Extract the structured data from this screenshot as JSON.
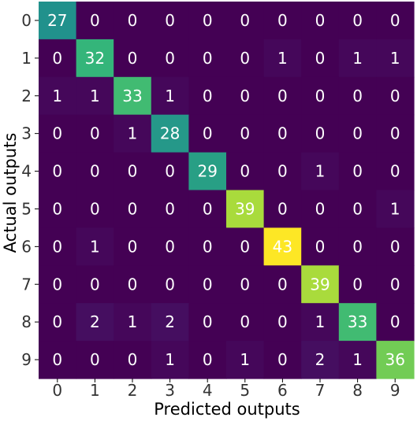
{
  "chart_data": {
    "type": "heatmap",
    "title": "",
    "xlabel": "Predicted outputs",
    "ylabel": "Actual outputs",
    "x_categories": [
      "0",
      "1",
      "2",
      "3",
      "4",
      "5",
      "6",
      "7",
      "8",
      "9"
    ],
    "y_categories": [
      "0",
      "1",
      "2",
      "3",
      "4",
      "5",
      "6",
      "7",
      "8",
      "9"
    ],
    "matrix": [
      [
        27,
        0,
        0,
        0,
        0,
        0,
        0,
        0,
        0,
        0
      ],
      [
        0,
        32,
        0,
        0,
        0,
        0,
        1,
        0,
        1,
        1
      ],
      [
        1,
        1,
        33,
        1,
        0,
        0,
        0,
        0,
        0,
        0
      ],
      [
        0,
        0,
        1,
        28,
        0,
        0,
        0,
        0,
        0,
        0
      ],
      [
        0,
        0,
        0,
        0,
        29,
        0,
        0,
        1,
        0,
        0
      ],
      [
        0,
        0,
        0,
        0,
        0,
        39,
        0,
        0,
        0,
        1
      ],
      [
        0,
        1,
        0,
        0,
        0,
        0,
        43,
        0,
        0,
        0
      ],
      [
        0,
        0,
        0,
        0,
        0,
        0,
        0,
        39,
        0,
        0
      ],
      [
        0,
        2,
        1,
        2,
        0,
        0,
        0,
        1,
        33,
        0
      ],
      [
        0,
        0,
        0,
        1,
        0,
        1,
        0,
        2,
        1,
        36
      ]
    ],
    "value_range": [
      0,
      43
    ],
    "colormap": "viridis",
    "cell_text_color": "#ffffff"
  }
}
